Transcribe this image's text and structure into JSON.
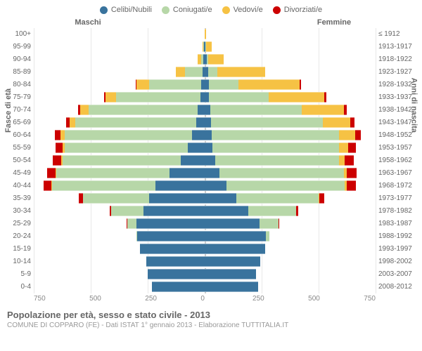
{
  "legend": [
    {
      "label": "Celibi/Nubili",
      "color": "#39739d"
    },
    {
      "label": "Coniugati/e",
      "color": "#b7d7a8"
    },
    {
      "label": "Vedovi/e",
      "color": "#f6c244"
    },
    {
      "label": "Divorziati/e",
      "color": "#cc0000"
    }
  ],
  "gender_labels": {
    "male": "Maschi",
    "female": "Femmine"
  },
  "axis_labels": {
    "left": "Fasce di età",
    "right": "Anni di nascita"
  },
  "x_ticks": [
    "750",
    "500",
    "250",
    "0",
    "250",
    "500",
    "750"
  ],
  "x_max": 750,
  "colors": {
    "celibi": "#39739d",
    "coniugati": "#b7d7a8",
    "vedovi": "#f6c244",
    "divorziati": "#cc0000",
    "grid": "#e8e8e8",
    "centerline": "#cccccc"
  },
  "rows": [
    {
      "age": "100+",
      "birth": "≤ 1912",
      "m": {
        "cel": 0,
        "con": 0,
        "ved": 0,
        "div": 0
      },
      "f": {
        "cel": 0,
        "con": 0,
        "ved": 5,
        "div": 0
      }
    },
    {
      "age": "95-99",
      "birth": "1913-1917",
      "m": {
        "cel": 2,
        "con": 3,
        "ved": 5,
        "div": 0
      },
      "f": {
        "cel": 3,
        "con": 2,
        "ved": 25,
        "div": 0
      }
    },
    {
      "age": "90-94",
      "birth": "1918-1922",
      "m": {
        "cel": 5,
        "con": 12,
        "ved": 15,
        "div": 0
      },
      "f": {
        "cel": 8,
        "con": 6,
        "ved": 70,
        "div": 0
      }
    },
    {
      "age": "85-89",
      "birth": "1923-1927",
      "m": {
        "cel": 8,
        "con": 80,
        "ved": 40,
        "div": 0
      },
      "f": {
        "cel": 15,
        "con": 40,
        "ved": 210,
        "div": 0
      }
    },
    {
      "age": "80-84",
      "birth": "1928-1932",
      "m": {
        "cel": 15,
        "con": 230,
        "ved": 55,
        "div": 3
      },
      "f": {
        "cel": 18,
        "con": 130,
        "ved": 270,
        "div": 5
      }
    },
    {
      "age": "75-79",
      "birth": "1933-1937",
      "m": {
        "cel": 20,
        "con": 370,
        "ved": 45,
        "div": 6
      },
      "f": {
        "cel": 20,
        "con": 260,
        "ved": 245,
        "div": 8
      }
    },
    {
      "age": "70-74",
      "birth": "1938-1942",
      "m": {
        "cel": 30,
        "con": 480,
        "ved": 35,
        "div": 10
      },
      "f": {
        "cel": 25,
        "con": 400,
        "ved": 185,
        "div": 12
      }
    },
    {
      "age": "65-69",
      "birth": "1943-1947",
      "m": {
        "cel": 38,
        "con": 530,
        "ved": 25,
        "div": 15
      },
      "f": {
        "cel": 28,
        "con": 490,
        "ved": 120,
        "div": 18
      }
    },
    {
      "age": "60-64",
      "birth": "1948-1952",
      "m": {
        "cel": 55,
        "con": 560,
        "ved": 18,
        "div": 25
      },
      "f": {
        "cel": 30,
        "con": 560,
        "ved": 70,
        "div": 25
      }
    },
    {
      "age": "55-59",
      "birth": "1953-1957",
      "m": {
        "cel": 75,
        "con": 540,
        "ved": 10,
        "div": 30
      },
      "f": {
        "cel": 35,
        "con": 555,
        "ved": 40,
        "div": 35
      }
    },
    {
      "age": "50-54",
      "birth": "1958-1962",
      "m": {
        "cel": 105,
        "con": 520,
        "ved": 6,
        "div": 35
      },
      "f": {
        "cel": 45,
        "con": 545,
        "ved": 25,
        "div": 40
      }
    },
    {
      "age": "45-49",
      "birth": "1963-1967",
      "m": {
        "cel": 155,
        "con": 495,
        "ved": 4,
        "div": 38
      },
      "f": {
        "cel": 65,
        "con": 545,
        "ved": 15,
        "div": 42
      }
    },
    {
      "age": "40-44",
      "birth": "1968-1972",
      "m": {
        "cel": 215,
        "con": 455,
        "ved": 2,
        "div": 35
      },
      "f": {
        "cel": 95,
        "con": 520,
        "ved": 8,
        "div": 40
      }
    },
    {
      "age": "35-39",
      "birth": "1973-1977",
      "m": {
        "cel": 245,
        "con": 290,
        "ved": 0,
        "div": 18
      },
      "f": {
        "cel": 140,
        "con": 360,
        "ved": 3,
        "div": 22
      }
    },
    {
      "age": "30-34",
      "birth": "1978-1982",
      "m": {
        "cel": 270,
        "con": 140,
        "ved": 0,
        "div": 8
      },
      "f": {
        "cel": 190,
        "con": 210,
        "ved": 0,
        "div": 10
      }
    },
    {
      "age": "25-29",
      "birth": "1983-1987",
      "m": {
        "cel": 300,
        "con": 40,
        "ved": 0,
        "div": 2
      },
      "f": {
        "cel": 240,
        "con": 85,
        "ved": 0,
        "div": 3
      }
    },
    {
      "age": "20-24",
      "birth": "1988-1992",
      "m": {
        "cel": 295,
        "con": 5,
        "ved": 0,
        "div": 0
      },
      "f": {
        "cel": 270,
        "con": 15,
        "ved": 0,
        "div": 0
      }
    },
    {
      "age": "15-19",
      "birth": "1993-1997",
      "m": {
        "cel": 285,
        "con": 0,
        "ved": 0,
        "div": 0
      },
      "f": {
        "cel": 265,
        "con": 0,
        "ved": 0,
        "div": 0
      }
    },
    {
      "age": "10-14",
      "birth": "1998-2002",
      "m": {
        "cel": 255,
        "con": 0,
        "ved": 0,
        "div": 0
      },
      "f": {
        "cel": 245,
        "con": 0,
        "ved": 0,
        "div": 0
      }
    },
    {
      "age": "5-9",
      "birth": "2003-2007",
      "m": {
        "cel": 250,
        "con": 0,
        "ved": 0,
        "div": 0
      },
      "f": {
        "cel": 225,
        "con": 0,
        "ved": 0,
        "div": 0
      }
    },
    {
      "age": "0-4",
      "birth": "2008-2012",
      "m": {
        "cel": 230,
        "con": 0,
        "ved": 0,
        "div": 0
      },
      "f": {
        "cel": 235,
        "con": 0,
        "ved": 0,
        "div": 0
      }
    }
  ],
  "footer": {
    "title": "Popolazione per età, sesso e stato civile - 2013",
    "sub": "COMUNE DI COPPARO (FE) - Dati ISTAT 1° gennaio 2013 - Elaborazione TUTTITALIA.IT"
  }
}
